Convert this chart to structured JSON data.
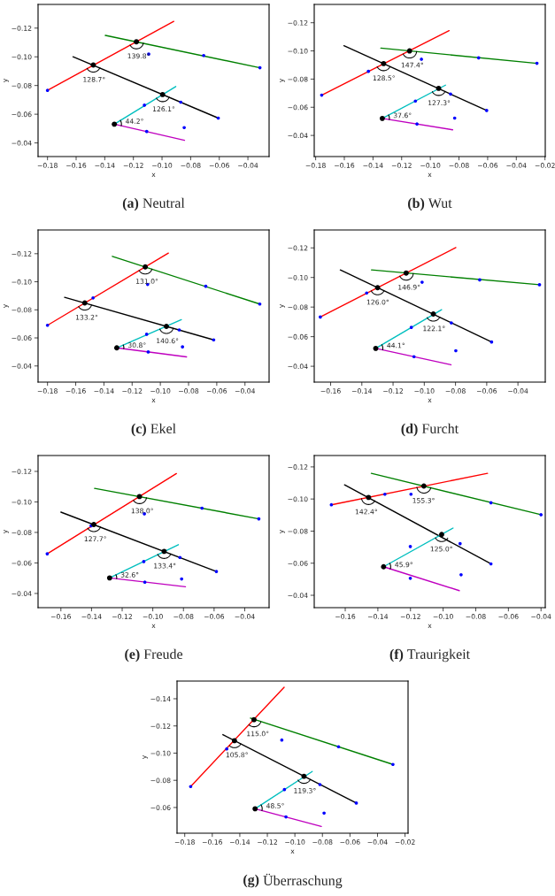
{
  "chart_data": [
    {
      "type": "line",
      "title": "(a) Neutral",
      "xlabel": "x",
      "ylabel": "y",
      "xlim": [
        -0.1866,
        -0.0252
      ],
      "ylim": [
        -0.0305,
        -0.1365
      ],
      "xticks": [
        {
          "value": -0.18,
          "label": "−0.18"
        },
        {
          "value": -0.16,
          "label": "−0.16"
        },
        {
          "value": -0.14,
          "label": "−0.14"
        },
        {
          "value": -0.12,
          "label": "−0.12"
        },
        {
          "value": -0.1,
          "label": "−0.10"
        },
        {
          "value": -0.08,
          "label": "−0.08"
        },
        {
          "value": -0.06,
          "label": "−0.06"
        },
        {
          "value": -0.04,
          "label": "−0.04"
        }
      ],
      "yticks": [
        {
          "value": -0.12,
          "label": "−0.12"
        },
        {
          "value": -0.1,
          "label": "−0.10"
        },
        {
          "value": -0.08,
          "label": "−0.08"
        },
        {
          "value": -0.06,
          "label": "−0.06"
        },
        {
          "value": -0.04,
          "label": "−0.04"
        }
      ],
      "series": [
        {
          "color": "#ff0000",
          "x": [
            -0.18,
            -0.0918
          ],
          "values": [
            -0.0766,
            -0.1247
          ]
        },
        {
          "color": "#008000",
          "x": [
            -0.1396,
            -0.0316
          ],
          "values": [
            -0.1149,
            -0.0924
          ]
        },
        {
          "color": "#000000",
          "x": [
            -0.1622,
            -0.0607
          ],
          "values": [
            -0.1,
            -0.0573
          ]
        },
        {
          "color": "#00bfbf",
          "x": [
            -0.1333,
            -0.0904
          ],
          "values": [
            -0.0531,
            -0.0793
          ]
        },
        {
          "color": "#bf00bf",
          "x": [
            -0.1333,
            -0.0843
          ],
          "values": [
            -0.0531,
            -0.0418
          ]
        },
        {
          "type": "scatter",
          "color": "#0000ff",
          "x": [
            -0.18,
            -0.1093,
            -0.0709,
            -0.0316,
            -0.1123,
            -0.0869,
            -0.0607,
            -0.1107,
            -0.0845
          ],
          "values": [
            -0.0766,
            -0.1019,
            -0.1009,
            -0.0924,
            -0.0663,
            -0.0684,
            -0.0573,
            -0.048,
            -0.0507
          ]
        },
        {
          "type": "bubble",
          "color": "#000000",
          "x": [
            -0.148,
            -0.1179,
            -0.0996,
            -0.1333
          ],
          "values": [
            -0.0943,
            -0.1105,
            -0.0737,
            -0.0531
          ],
          "sizes": [
            1,
            1,
            1,
            1
          ]
        }
      ],
      "annotations": [
        {
          "text": "128.7°",
          "x": -0.148,
          "y": -0.0943
        },
        {
          "text": "139.8°",
          "x": -0.1179,
          "y": -0.1105
        },
        {
          "text": "126.1°",
          "x": -0.0996,
          "y": -0.0737
        },
        {
          "text": "44.2°",
          "x": -0.1333,
          "y": -0.0531
        }
      ]
    },
    {
      "type": "line",
      "title": "(b) Wut",
      "xlabel": "x",
      "ylabel": "y",
      "xlim": [
        -0.181,
        -0.0198
      ],
      "ylim": [
        -0.025,
        -0.133
      ],
      "xticks": [
        {
          "value": -0.18,
          "label": "−0.18"
        },
        {
          "value": -0.16,
          "label": "−0.16"
        },
        {
          "value": -0.14,
          "label": "−0.14"
        },
        {
          "value": -0.12,
          "label": "−0.12"
        },
        {
          "value": -0.1,
          "label": "−0.10"
        },
        {
          "value": -0.08,
          "label": "−0.08"
        },
        {
          "value": -0.06,
          "label": "−0.06"
        },
        {
          "value": -0.04,
          "label": "−0.04"
        },
        {
          "value": -0.02,
          "label": "−0.02"
        }
      ],
      "yticks": [
        {
          "value": -0.12,
          "label": "−0.12"
        },
        {
          "value": -0.1,
          "label": "−0.10"
        },
        {
          "value": -0.08,
          "label": "−0.08"
        },
        {
          "value": -0.06,
          "label": "−0.06"
        },
        {
          "value": -0.04,
          "label": "−0.04"
        }
      ],
      "series": [
        {
          "color": "#ff0000",
          "x": [
            -0.1758,
            -0.0869
          ],
          "values": [
            -0.0686,
            -0.1144
          ]
        },
        {
          "color": "#008000",
          "x": [
            -0.1345,
            -0.0256
          ],
          "values": [
            -0.102,
            -0.0912
          ]
        },
        {
          "color": "#000000",
          "x": [
            -0.1603,
            -0.0607
          ],
          "values": [
            -0.1037,
            -0.0577
          ]
        },
        {
          "color": "#00bfbf",
          "x": [
            -0.1335,
            -0.0894
          ],
          "values": [
            -0.0521,
            -0.0757
          ]
        },
        {
          "color": "#bf00bf",
          "x": [
            -0.1335,
            -0.0844
          ],
          "values": [
            -0.0521,
            -0.044
          ]
        },
        {
          "type": "scatter",
          "color": "#0000ff",
          "x": [
            -0.1758,
            -0.1432,
            -0.1062,
            -0.0663,
            -0.0256,
            -0.1104,
            -0.0859,
            -0.0607,
            -0.1093,
            -0.083
          ],
          "values": [
            -0.0686,
            -0.0855,
            -0.0941,
            -0.0951,
            -0.0912,
            -0.0644,
            -0.0694,
            -0.0577,
            -0.0481,
            -0.0523
          ]
        },
        {
          "type": "bubble",
          "color": "#000000",
          "x": [
            -0.1326,
            -0.1145,
            -0.0942,
            -0.1335
          ],
          "values": [
            -0.091,
            -0.1,
            -0.0734,
            -0.0521
          ],
          "sizes": [
            1,
            1,
            1,
            1
          ]
        }
      ],
      "annotations": [
        {
          "text": "128.5°",
          "x": -0.1326,
          "y": -0.091
        },
        {
          "text": "147.4°",
          "x": -0.1145,
          "y": -0.1
        },
        {
          "text": "127.3°",
          "x": -0.0942,
          "y": -0.0734
        },
        {
          "text": "37.6°",
          "x": -0.1335,
          "y": -0.0521
        }
      ]
    },
    {
      "type": "line",
      "title": "(c) Ekel",
      "xlabel": "x",
      "ylabel": "y",
      "xlim": [
        -0.1867,
        -0.0229
      ],
      "ylim": [
        -0.0285,
        -0.1369
      ],
      "xticks": [
        {
          "value": -0.18,
          "label": "−0.18"
        },
        {
          "value": -0.16,
          "label": "−0.16"
        },
        {
          "value": -0.14,
          "label": "−0.14"
        },
        {
          "value": -0.12,
          "label": "−0.12"
        },
        {
          "value": -0.1,
          "label": "−0.10"
        },
        {
          "value": -0.08,
          "label": "−0.08"
        },
        {
          "value": -0.06,
          "label": "−0.06"
        },
        {
          "value": -0.04,
          "label": "−0.04"
        }
      ],
      "yticks": [
        {
          "value": -0.12,
          "label": "−0.12"
        },
        {
          "value": -0.1,
          "label": "−0.10"
        },
        {
          "value": -0.08,
          "label": "−0.08"
        },
        {
          "value": -0.06,
          "label": "−0.06"
        },
        {
          "value": -0.04,
          "label": "−0.04"
        }
      ],
      "series": [
        {
          "color": "#ff0000",
          "x": [
            -0.18,
            -0.0943
          ],
          "values": [
            -0.069,
            -0.1204
          ]
        },
        {
          "color": "#008000",
          "x": [
            -0.134,
            -0.0295
          ],
          "values": [
            -0.1181,
            -0.0841
          ]
        },
        {
          "color": "#000000",
          "x": [
            -0.1679,
            -0.0622
          ],
          "values": [
            -0.0889,
            -0.0586
          ]
        },
        {
          "color": "#00bfbf",
          "x": [
            -0.1309,
            -0.0851
          ],
          "values": [
            -0.0529,
            -0.073
          ]
        },
        {
          "color": "#bf00bf",
          "x": [
            -0.1309,
            -0.0814
          ],
          "values": [
            -0.0529,
            -0.0465
          ]
        },
        {
          "type": "scatter",
          "color": "#0000ff",
          "x": [
            -0.18,
            -0.1477,
            -0.109,
            -0.0678,
            -0.0295,
            -0.1097,
            -0.0866,
            -0.0622,
            -0.1086,
            -0.0843
          ],
          "values": [
            -0.069,
            -0.0885,
            -0.0981,
            -0.0968,
            -0.0841,
            -0.0626,
            -0.0657,
            -0.0586,
            -0.05,
            -0.0536
          ]
        },
        {
          "type": "bubble",
          "color": "#000000",
          "x": [
            -0.1536,
            -0.1107,
            -0.0957,
            -0.1309
          ],
          "values": [
            -0.0849,
            -0.1106,
            -0.0682,
            -0.0529
          ],
          "sizes": [
            1,
            1,
            1,
            1
          ]
        }
      ],
      "annotations": [
        {
          "text": "133.2°",
          "x": -0.1536,
          "y": -0.0849
        },
        {
          "text": "131.0°",
          "x": -0.1107,
          "y": -0.1106
        },
        {
          "text": "140.6°",
          "x": -0.0957,
          "y": -0.0682
        },
        {
          "text": "30.8°",
          "x": -0.1309,
          "y": -0.0529
        }
      ]
    },
    {
      "type": "line",
      "title": "(d) Furcht",
      "xlabel": "x",
      "ylabel": "y",
      "xlim": [
        -0.1705,
        -0.0225
      ],
      "ylim": [
        -0.0293,
        -0.1321
      ],
      "xticks": [
        {
          "value": -0.16,
          "label": "−0.16"
        },
        {
          "value": -0.14,
          "label": "−0.14"
        },
        {
          "value": -0.12,
          "label": "−0.12"
        },
        {
          "value": -0.1,
          "label": "−0.10"
        },
        {
          "value": -0.08,
          "label": "−0.08"
        },
        {
          "value": -0.06,
          "label": "−0.06"
        },
        {
          "value": -0.04,
          "label": "−0.04"
        }
      ],
      "yticks": [
        {
          "value": -0.12,
          "label": "−0.12"
        },
        {
          "value": -0.1,
          "label": "−0.10"
        },
        {
          "value": -0.08,
          "label": "−0.08"
        },
        {
          "value": -0.06,
          "label": "−0.06"
        },
        {
          "value": -0.04,
          "label": "−0.04"
        }
      ],
      "series": [
        {
          "color": "#ff0000",
          "x": [
            -0.1666,
            -0.0798
          ],
          "values": [
            -0.0733,
            -0.1202
          ]
        },
        {
          "color": "#008000",
          "x": [
            -0.1338,
            -0.0262
          ],
          "values": [
            -0.1051,
            -0.0951
          ]
        },
        {
          "color": "#000000",
          "x": [
            -0.1538,
            -0.0569
          ],
          "values": [
            -0.1051,
            -0.0564
          ]
        },
        {
          "color": "#00bfbf",
          "x": [
            -0.1311,
            -0.0889
          ],
          "values": [
            -0.0521,
            -0.0782
          ]
        },
        {
          "color": "#bf00bf",
          "x": [
            -0.1311,
            -0.0829
          ],
          "values": [
            -0.0521,
            -0.041
          ]
        },
        {
          "type": "scatter",
          "color": "#0000ff",
          "x": [
            -0.1666,
            -0.1369,
            -0.1014,
            -0.0645,
            -0.0262,
            -0.1083,
            -0.0827,
            -0.0569,
            -0.1066,
            -0.0798
          ],
          "values": [
            -0.0733,
            -0.0895,
            -0.0968,
            -0.0984,
            -0.0951,
            -0.0663,
            -0.0693,
            -0.0564,
            -0.0465,
            -0.0505
          ]
        },
        {
          "type": "bubble",
          "color": "#000000",
          "x": [
            -0.1299,
            -0.1116,
            -0.0942,
            -0.1311
          ],
          "values": [
            -0.0931,
            -0.103,
            -0.0753,
            -0.0521
          ],
          "sizes": [
            1,
            1,
            1,
            1
          ]
        }
      ],
      "annotations": [
        {
          "text": "126.0°",
          "x": -0.1299,
          "y": -0.0931
        },
        {
          "text": "146.9°",
          "x": -0.1116,
          "y": -0.103
        },
        {
          "text": "122.1°",
          "x": -0.0942,
          "y": -0.0753
        },
        {
          "text": "44.1°",
          "x": -0.1311,
          "y": -0.0521
        }
      ]
    },
    {
      "type": "line",
      "title": "(e) Freude",
      "xlabel": "x",
      "ylabel": "y",
      "xlim": [
        -0.1749,
        -0.0241
      ],
      "ylim": [
        -0.0307,
        -0.1304
      ],
      "xticks": [
        {
          "value": -0.16,
          "label": "−0.16"
        },
        {
          "value": -0.14,
          "label": "−0.14"
        },
        {
          "value": -0.12,
          "label": "−0.12"
        },
        {
          "value": -0.1,
          "label": "−0.10"
        },
        {
          "value": -0.08,
          "label": "−0.08"
        },
        {
          "value": -0.06,
          "label": "−0.06"
        },
        {
          "value": -0.04,
          "label": "−0.04"
        }
      ],
      "yticks": [
        {
          "value": -0.12,
          "label": "−0.12"
        },
        {
          "value": -0.1,
          "label": "−0.10"
        },
        {
          "value": -0.08,
          "label": "−0.08"
        },
        {
          "value": -0.06,
          "label": "−0.06"
        },
        {
          "value": -0.04,
          "label": "−0.04"
        }
      ],
      "series": [
        {
          "color": "#ff0000",
          "x": [
            -0.1689,
            -0.0846
          ],
          "values": [
            -0.066,
            -0.1186
          ]
        },
        {
          "color": "#008000",
          "x": [
            -0.138,
            -0.0308
          ],
          "values": [
            -0.1089,
            -0.0889
          ]
        },
        {
          "color": "#000000",
          "x": [
            -0.16,
            -0.0585
          ],
          "values": [
            -0.0933,
            -0.0544
          ]
        },
        {
          "color": "#00bfbf",
          "x": [
            -0.1282,
            -0.0833
          ],
          "values": [
            -0.0502,
            -0.072
          ]
        },
        {
          "color": "#bf00bf",
          "x": [
            -0.1282,
            -0.0787
          ],
          "values": [
            -0.0502,
            -0.0444
          ]
        },
        {
          "type": "scatter",
          "color": "#0000ff",
          "x": [
            -0.1689,
            -0.1403,
            -0.1055,
            -0.0679,
            -0.0308,
            -0.1059,
            -0.0823,
            -0.0585,
            -0.1052,
            -0.0812
          ],
          "values": [
            -0.066,
            -0.0843,
            -0.0922,
            -0.0959,
            -0.0889,
            -0.0609,
            -0.0636,
            -0.0544,
            -0.0474,
            -0.0495
          ]
        },
        {
          "type": "bubble",
          "color": "#000000",
          "x": [
            -0.1385,
            -0.1087,
            -0.0926,
            -0.1282
          ],
          "values": [
            -0.0852,
            -0.1035,
            -0.0676,
            -0.0502
          ],
          "sizes": [
            1,
            1,
            1,
            1
          ]
        }
      ],
      "annotations": [
        {
          "text": "127.7°",
          "x": -0.1385,
          "y": -0.0852
        },
        {
          "text": "138.0°",
          "x": -0.1087,
          "y": -0.1035
        },
        {
          "text": "133.4°",
          "x": -0.0926,
          "y": -0.0676
        },
        {
          "text": "32.6°",
          "x": -0.1282,
          "y": -0.0502
        }
      ]
    },
    {
      "type": "line",
      "title": "(f) Traurigkeit",
      "xlabel": "x",
      "ylabel": "y",
      "xlim": [
        -0.179,
        -0.0374
      ],
      "ylim": [
        -0.0323,
        -0.1271
      ],
      "xticks": [
        {
          "value": -0.16,
          "label": "−0.16"
        },
        {
          "value": -0.14,
          "label": "−0.14"
        },
        {
          "value": -0.12,
          "label": "−0.12"
        },
        {
          "value": -0.1,
          "label": "−0.10"
        },
        {
          "value": -0.08,
          "label": "−0.08"
        },
        {
          "value": -0.06,
          "label": "−0.06"
        },
        {
          "value": -0.04,
          "label": "−0.04"
        }
      ],
      "yticks": [
        {
          "value": -0.12,
          "label": "−0.12"
        },
        {
          "value": -0.1,
          "label": "−0.10"
        },
        {
          "value": -0.08,
          "label": "−0.08"
        },
        {
          "value": -0.06,
          "label": "−0.06"
        },
        {
          "value": -0.04,
          "label": "−0.04"
        }
      ],
      "series": [
        {
          "color": "#ff0000",
          "x": [
            -0.1685,
            -0.0728
          ],
          "values": [
            -0.0964,
            -0.116
          ]
        },
        {
          "color": "#008000",
          "x": [
            -0.144,
            -0.04
          ],
          "values": [
            -0.116,
            -0.0902
          ]
        },
        {
          "color": "#000000",
          "x": [
            -0.1604,
            -0.0707
          ],
          "values": [
            -0.1088,
            -0.0596
          ]
        },
        {
          "color": "#00bfbf",
          "x": [
            -0.1365,
            -0.0939
          ],
          "values": [
            -0.0578,
            -0.0819
          ]
        },
        {
          "color": "#bf00bf",
          "x": [
            -0.1365,
            -0.0901
          ],
          "values": [
            -0.0578,
            -0.0429
          ]
        },
        {
          "type": "scatter",
          "color": "#0000ff",
          "x": [
            -0.1685,
            -0.1357,
            -0.1197,
            -0.0707,
            -0.04,
            -0.1201,
            -0.0896,
            -0.0707,
            -0.1201,
            -0.089
          ],
          "values": [
            -0.0964,
            -0.103,
            -0.103,
            -0.0977,
            -0.0902,
            -0.0704,
            -0.0722,
            -0.0596,
            -0.0506,
            -0.0528
          ]
        },
        {
          "type": "bubble",
          "color": "#000000",
          "x": [
            -0.1457,
            -0.1118,
            -0.1009,
            -0.1365
          ],
          "values": [
            -0.101,
            -0.1081,
            -0.0779,
            -0.0578
          ],
          "sizes": [
            1,
            1,
            1,
            1
          ]
        }
      ],
      "annotations": [
        {
          "text": "142.4°",
          "x": -0.1457,
          "y": -0.101
        },
        {
          "text": "155.3°",
          "x": -0.1118,
          "y": -0.1081
        },
        {
          "text": "125.0°",
          "x": -0.1009,
          "y": -0.0779
        },
        {
          "text": "45.9°",
          "x": -0.1365,
          "y": -0.0578
        }
      ]
    },
    {
      "type": "line",
      "title": "(g) Überraschung",
      "xlabel": "x",
      "ylabel": "y",
      "xlim": [
        -0.1856,
        -0.0178
      ],
      "ylim": [
        -0.0411,
        -0.153
      ],
      "xticks": [
        {
          "value": -0.18,
          "label": "−0.18"
        },
        {
          "value": -0.16,
          "label": "−0.16"
        },
        {
          "value": -0.14,
          "label": "−0.14"
        },
        {
          "value": -0.12,
          "label": "−0.12"
        },
        {
          "value": -0.1,
          "label": "−0.10"
        },
        {
          "value": -0.08,
          "label": "−0.08"
        },
        {
          "value": -0.06,
          "label": "−0.06"
        },
        {
          "value": -0.04,
          "label": "−0.04"
        },
        {
          "value": -0.02,
          "label": "−0.02"
        }
      ],
      "yticks": [
        {
          "value": -0.14,
          "label": "−0.14"
        },
        {
          "value": -0.12,
          "label": "−0.12"
        },
        {
          "value": -0.1,
          "label": "−0.10"
        },
        {
          "value": -0.08,
          "label": "−0.08"
        },
        {
          "value": -0.06,
          "label": "−0.06"
        }
      ],
      "series": [
        {
          "color": "#ff0000",
          "x": [
            -0.1757,
            -0.1078
          ],
          "values": [
            -0.0754,
            -0.1485
          ]
        },
        {
          "color": "#008000",
          "x": [
            -0.1323,
            -0.0288
          ],
          "values": [
            -0.1257,
            -0.0917
          ]
        },
        {
          "color": "#000000",
          "x": [
            -0.1523,
            -0.0554
          ],
          "values": [
            -0.1136,
            -0.0633
          ]
        },
        {
          "color": "#00bfbf",
          "x": [
            -0.1289,
            -0.0874
          ],
          "values": [
            -0.0591,
            -0.0865
          ]
        },
        {
          "color": "#bf00bf",
          "x": [
            -0.1289,
            -0.0808
          ],
          "values": [
            -0.0591,
            -0.0461
          ]
        },
        {
          "type": "scatter",
          "color": "#0000ff",
          "x": [
            -0.1757,
            -0.1495,
            -0.1095,
            -0.0683,
            -0.0288,
            -0.1076,
            -0.0818,
            -0.0554,
            -0.1065,
            -0.0788
          ],
          "values": [
            -0.0754,
            -0.1031,
            -0.1096,
            -0.1047,
            -0.0917,
            -0.0732,
            -0.0769,
            -0.0633,
            -0.0531,
            -0.0559
          ]
        },
        {
          "type": "bubble",
          "color": "#000000",
          "x": [
            -0.1439,
            -0.1297,
            -0.0934,
            -0.1289
          ],
          "values": [
            -0.1092,
            -0.1246,
            -0.083,
            -0.0591
          ],
          "sizes": [
            1,
            1,
            1,
            1
          ]
        }
      ],
      "annotations": [
        {
          "text": "105.8°",
          "x": -0.1439,
          "y": -0.1092
        },
        {
          "text": "115.0°",
          "x": -0.1297,
          "y": -0.1246
        },
        {
          "text": "119.3°",
          "x": -0.0934,
          "y": -0.083
        },
        {
          "text": "48.5°",
          "x": -0.1289,
          "y": -0.0591
        }
      ]
    }
  ]
}
